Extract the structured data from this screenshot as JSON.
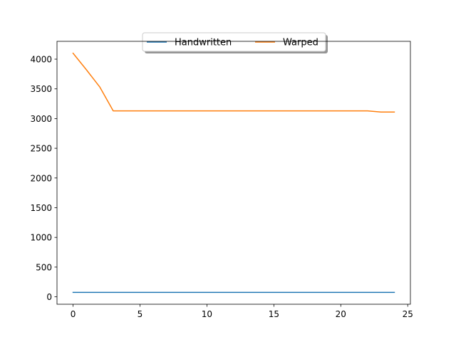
{
  "chart_data": {
    "type": "line",
    "title": "",
    "xlabel": "",
    "ylabel": "",
    "xlim": [
      -1.2,
      25.2
    ],
    "ylim": [
      -125,
      4300
    ],
    "xticks": [
      0,
      5,
      10,
      15,
      20,
      25
    ],
    "yticks": [
      0,
      500,
      1000,
      1500,
      2000,
      2500,
      3000,
      3500,
      4000
    ],
    "x": [
      0,
      1,
      2,
      3,
      4,
      5,
      6,
      7,
      8,
      9,
      10,
      11,
      12,
      13,
      14,
      15,
      16,
      17,
      18,
      19,
      20,
      21,
      22,
      23,
      24
    ],
    "series": [
      {
        "name": "Handwritten",
        "color": "#1f77b4",
        "values": [
          75,
          75,
          75,
          75,
          75,
          75,
          75,
          75,
          75,
          75,
          75,
          75,
          75,
          75,
          75,
          75,
          75,
          75,
          75,
          75,
          75,
          75,
          75,
          75,
          75
        ]
      },
      {
        "name": "Warped",
        "color": "#ff7f0e",
        "values": [
          4100,
          3820,
          3530,
          3130,
          3130,
          3130,
          3130,
          3130,
          3130,
          3130,
          3130,
          3130,
          3130,
          3130,
          3130,
          3130,
          3130,
          3130,
          3130,
          3130,
          3130,
          3130,
          3130,
          3110,
          3110
        ]
      }
    ],
    "grid": false,
    "legend": "upper center"
  }
}
